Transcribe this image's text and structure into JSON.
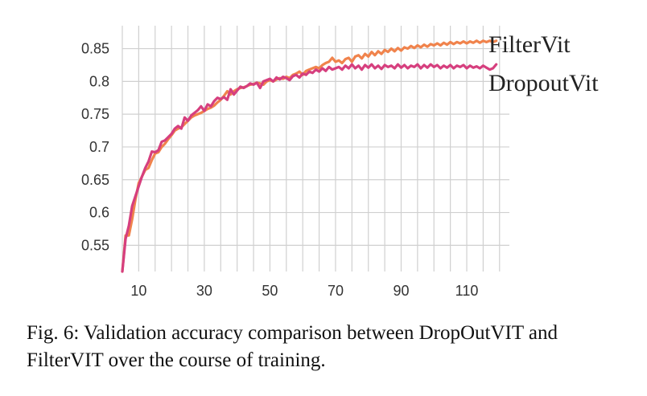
{
  "chart_data": {
    "type": "line",
    "xlim": [
      5,
      123
    ],
    "ylim": [
      0.51,
      0.885
    ],
    "xticks": [
      10,
      30,
      50,
      70,
      90,
      110
    ],
    "xtick_labels": [
      "10",
      "30",
      "50",
      "70",
      "90",
      "110"
    ],
    "yticks": [
      0.55,
      0.6,
      0.65,
      0.7,
      0.75,
      0.8,
      0.85
    ],
    "ytick_labels": [
      "0.55",
      "0.6",
      "0.65",
      "0.7",
      "0.75",
      "0.8",
      "0.85"
    ],
    "grid": true,
    "legend_placement": "right, inline at line ends",
    "series": [
      {
        "name": "FilterVit",
        "color": "#f0834c",
        "points": [
          [
            5,
            0.51
          ],
          [
            6,
            0.565
          ],
          [
            7,
            0.565
          ],
          [
            8,
            0.59
          ],
          [
            9,
            0.62
          ],
          [
            10,
            0.645
          ],
          [
            11,
            0.655
          ],
          [
            12,
            0.665
          ],
          [
            13,
            0.668
          ],
          [
            14,
            0.68
          ],
          [
            15,
            0.69
          ],
          [
            16,
            0.692
          ],
          [
            17,
            0.7
          ],
          [
            18,
            0.705
          ],
          [
            19,
            0.712
          ],
          [
            20,
            0.718
          ],
          [
            21,
            0.725
          ],
          [
            22,
            0.728
          ],
          [
            23,
            0.73
          ],
          [
            24,
            0.735
          ],
          [
            25,
            0.74
          ],
          [
            26,
            0.745
          ],
          [
            27,
            0.748
          ],
          [
            28,
            0.75
          ],
          [
            29,
            0.752
          ],
          [
            30,
            0.755
          ],
          [
            31,
            0.758
          ],
          [
            32,
            0.76
          ],
          [
            33,
            0.763
          ],
          [
            34,
            0.768
          ],
          [
            35,
            0.772
          ],
          [
            36,
            0.778
          ],
          [
            37,
            0.785
          ],
          [
            38,
            0.78
          ],
          [
            39,
            0.785
          ],
          [
            40,
            0.788
          ],
          [
            41,
            0.79
          ],
          [
            42,
            0.791
          ],
          [
            43,
            0.793
          ],
          [
            44,
            0.795
          ],
          [
            45,
            0.796
          ],
          [
            46,
            0.798
          ],
          [
            47,
            0.797
          ],
          [
            48,
            0.795
          ],
          [
            49,
            0.8
          ],
          [
            50,
            0.802
          ],
          [
            51,
            0.8
          ],
          [
            52,
            0.803
          ],
          [
            53,
            0.805
          ],
          [
            54,
            0.804
          ],
          [
            55,
            0.807
          ],
          [
            56,
            0.805
          ],
          [
            57,
            0.81
          ],
          [
            58,
            0.812
          ],
          [
            59,
            0.815
          ],
          [
            60,
            0.81
          ],
          [
            61,
            0.816
          ],
          [
            62,
            0.818
          ],
          [
            63,
            0.82
          ],
          [
            64,
            0.822
          ],
          [
            65,
            0.82
          ],
          [
            66,
            0.825
          ],
          [
            67,
            0.828
          ],
          [
            68,
            0.83
          ],
          [
            69,
            0.836
          ],
          [
            70,
            0.83
          ],
          [
            71,
            0.832
          ],
          [
            72,
            0.828
          ],
          [
            73,
            0.834
          ],
          [
            74,
            0.836
          ],
          [
            75,
            0.83
          ],
          [
            76,
            0.838
          ],
          [
            77,
            0.84
          ],
          [
            78,
            0.835
          ],
          [
            79,
            0.842
          ],
          [
            80,
            0.838
          ],
          [
            81,
            0.845
          ],
          [
            82,
            0.84
          ],
          [
            83,
            0.846
          ],
          [
            84,
            0.842
          ],
          [
            85,
            0.848
          ],
          [
            86,
            0.845
          ],
          [
            87,
            0.85
          ],
          [
            88,
            0.846
          ],
          [
            89,
            0.851
          ],
          [
            90,
            0.847
          ],
          [
            91,
            0.852
          ],
          [
            92,
            0.85
          ],
          [
            93,
            0.854
          ],
          [
            94,
            0.851
          ],
          [
            95,
            0.855
          ],
          [
            96,
            0.852
          ],
          [
            97,
            0.856
          ],
          [
            98,
            0.853
          ],
          [
            99,
            0.857
          ],
          [
            100,
            0.855
          ],
          [
            101,
            0.858
          ],
          [
            102,
            0.855
          ],
          [
            103,
            0.859
          ],
          [
            104,
            0.856
          ],
          [
            105,
            0.86
          ],
          [
            106,
            0.857
          ],
          [
            107,
            0.86
          ],
          [
            108,
            0.858
          ],
          [
            109,
            0.861
          ],
          [
            110,
            0.858
          ],
          [
            111,
            0.861
          ],
          [
            112,
            0.859
          ],
          [
            113,
            0.862
          ],
          [
            114,
            0.859
          ],
          [
            115,
            0.862
          ],
          [
            116,
            0.86
          ],
          [
            117,
            0.862
          ],
          [
            118,
            0.86
          ],
          [
            119,
            0.862
          ]
        ]
      },
      {
        "name": "DropoutVit",
        "color": "#d63f7e",
        "points": [
          [
            5,
            0.51
          ],
          [
            6,
            0.56
          ],
          [
            7,
            0.58
          ],
          [
            8,
            0.61
          ],
          [
            9,
            0.625
          ],
          [
            10,
            0.64
          ],
          [
            11,
            0.655
          ],
          [
            12,
            0.668
          ],
          [
            13,
            0.678
          ],
          [
            14,
            0.693
          ],
          [
            15,
            0.692
          ],
          [
            16,
            0.695
          ],
          [
            17,
            0.708
          ],
          [
            18,
            0.71
          ],
          [
            19,
            0.715
          ],
          [
            20,
            0.72
          ],
          [
            21,
            0.728
          ],
          [
            22,
            0.732
          ],
          [
            23,
            0.728
          ],
          [
            24,
            0.745
          ],
          [
            25,
            0.74
          ],
          [
            26,
            0.748
          ],
          [
            27,
            0.752
          ],
          [
            28,
            0.756
          ],
          [
            29,
            0.762
          ],
          [
            30,
            0.755
          ],
          [
            31,
            0.765
          ],
          [
            32,
            0.762
          ],
          [
            33,
            0.77
          ],
          [
            34,
            0.775
          ],
          [
            35,
            0.773
          ],
          [
            36,
            0.776
          ],
          [
            37,
            0.772
          ],
          [
            38,
            0.788
          ],
          [
            39,
            0.78
          ],
          [
            40,
            0.786
          ],
          [
            41,
            0.792
          ],
          [
            42,
            0.79
          ],
          [
            43,
            0.793
          ],
          [
            44,
            0.797
          ],
          [
            45,
            0.795
          ],
          [
            46,
            0.798
          ],
          [
            47,
            0.79
          ],
          [
            48,
            0.8
          ],
          [
            49,
            0.802
          ],
          [
            50,
            0.804
          ],
          [
            51,
            0.8
          ],
          [
            52,
            0.806
          ],
          [
            53,
            0.803
          ],
          [
            54,
            0.807
          ],
          [
            55,
            0.805
          ],
          [
            56,
            0.802
          ],
          [
            57,
            0.808
          ],
          [
            58,
            0.81
          ],
          [
            59,
            0.806
          ],
          [
            60,
            0.812
          ],
          [
            61,
            0.81
          ],
          [
            62,
            0.815
          ],
          [
            63,
            0.813
          ],
          [
            64,
            0.818
          ],
          [
            65,
            0.815
          ],
          [
            66,
            0.82
          ],
          [
            67,
            0.816
          ],
          [
            68,
            0.822
          ],
          [
            69,
            0.818
          ],
          [
            70,
            0.82
          ],
          [
            71,
            0.822
          ],
          [
            72,
            0.818
          ],
          [
            73,
            0.824
          ],
          [
            74,
            0.82
          ],
          [
            75,
            0.826
          ],
          [
            76,
            0.82
          ],
          [
            77,
            0.824
          ],
          [
            78,
            0.818
          ],
          [
            79,
            0.825
          ],
          [
            80,
            0.821
          ],
          [
            81,
            0.826
          ],
          [
            82,
            0.82
          ],
          [
            83,
            0.824
          ],
          [
            84,
            0.819
          ],
          [
            85,
            0.825
          ],
          [
            86,
            0.822
          ],
          [
            87,
            0.824
          ],
          [
            88,
            0.82
          ],
          [
            89,
            0.826
          ],
          [
            90,
            0.821
          ],
          [
            91,
            0.825
          ],
          [
            92,
            0.82
          ],
          [
            93,
            0.824
          ],
          [
            94,
            0.822
          ],
          [
            95,
            0.826
          ],
          [
            96,
            0.82
          ],
          [
            97,
            0.825
          ],
          [
            98,
            0.821
          ],
          [
            99,
            0.826
          ],
          [
            100,
            0.822
          ],
          [
            101,
            0.825
          ],
          [
            102,
            0.82
          ],
          [
            103,
            0.824
          ],
          [
            104,
            0.821
          ],
          [
            105,
            0.825
          ],
          [
            106,
            0.82
          ],
          [
            107,
            0.824
          ],
          [
            108,
            0.822
          ],
          [
            109,
            0.825
          ],
          [
            110,
            0.82
          ],
          [
            111,
            0.824
          ],
          [
            112,
            0.821
          ],
          [
            113,
            0.823
          ],
          [
            114,
            0.82
          ],
          [
            115,
            0.824
          ],
          [
            116,
            0.821
          ],
          [
            117,
            0.818
          ],
          [
            118,
            0.82
          ],
          [
            119,
            0.826
          ]
        ]
      }
    ]
  },
  "caption": "Fig. 6: Validation accuracy comparison between DropOutVIT and FilterVIT over the course of training."
}
